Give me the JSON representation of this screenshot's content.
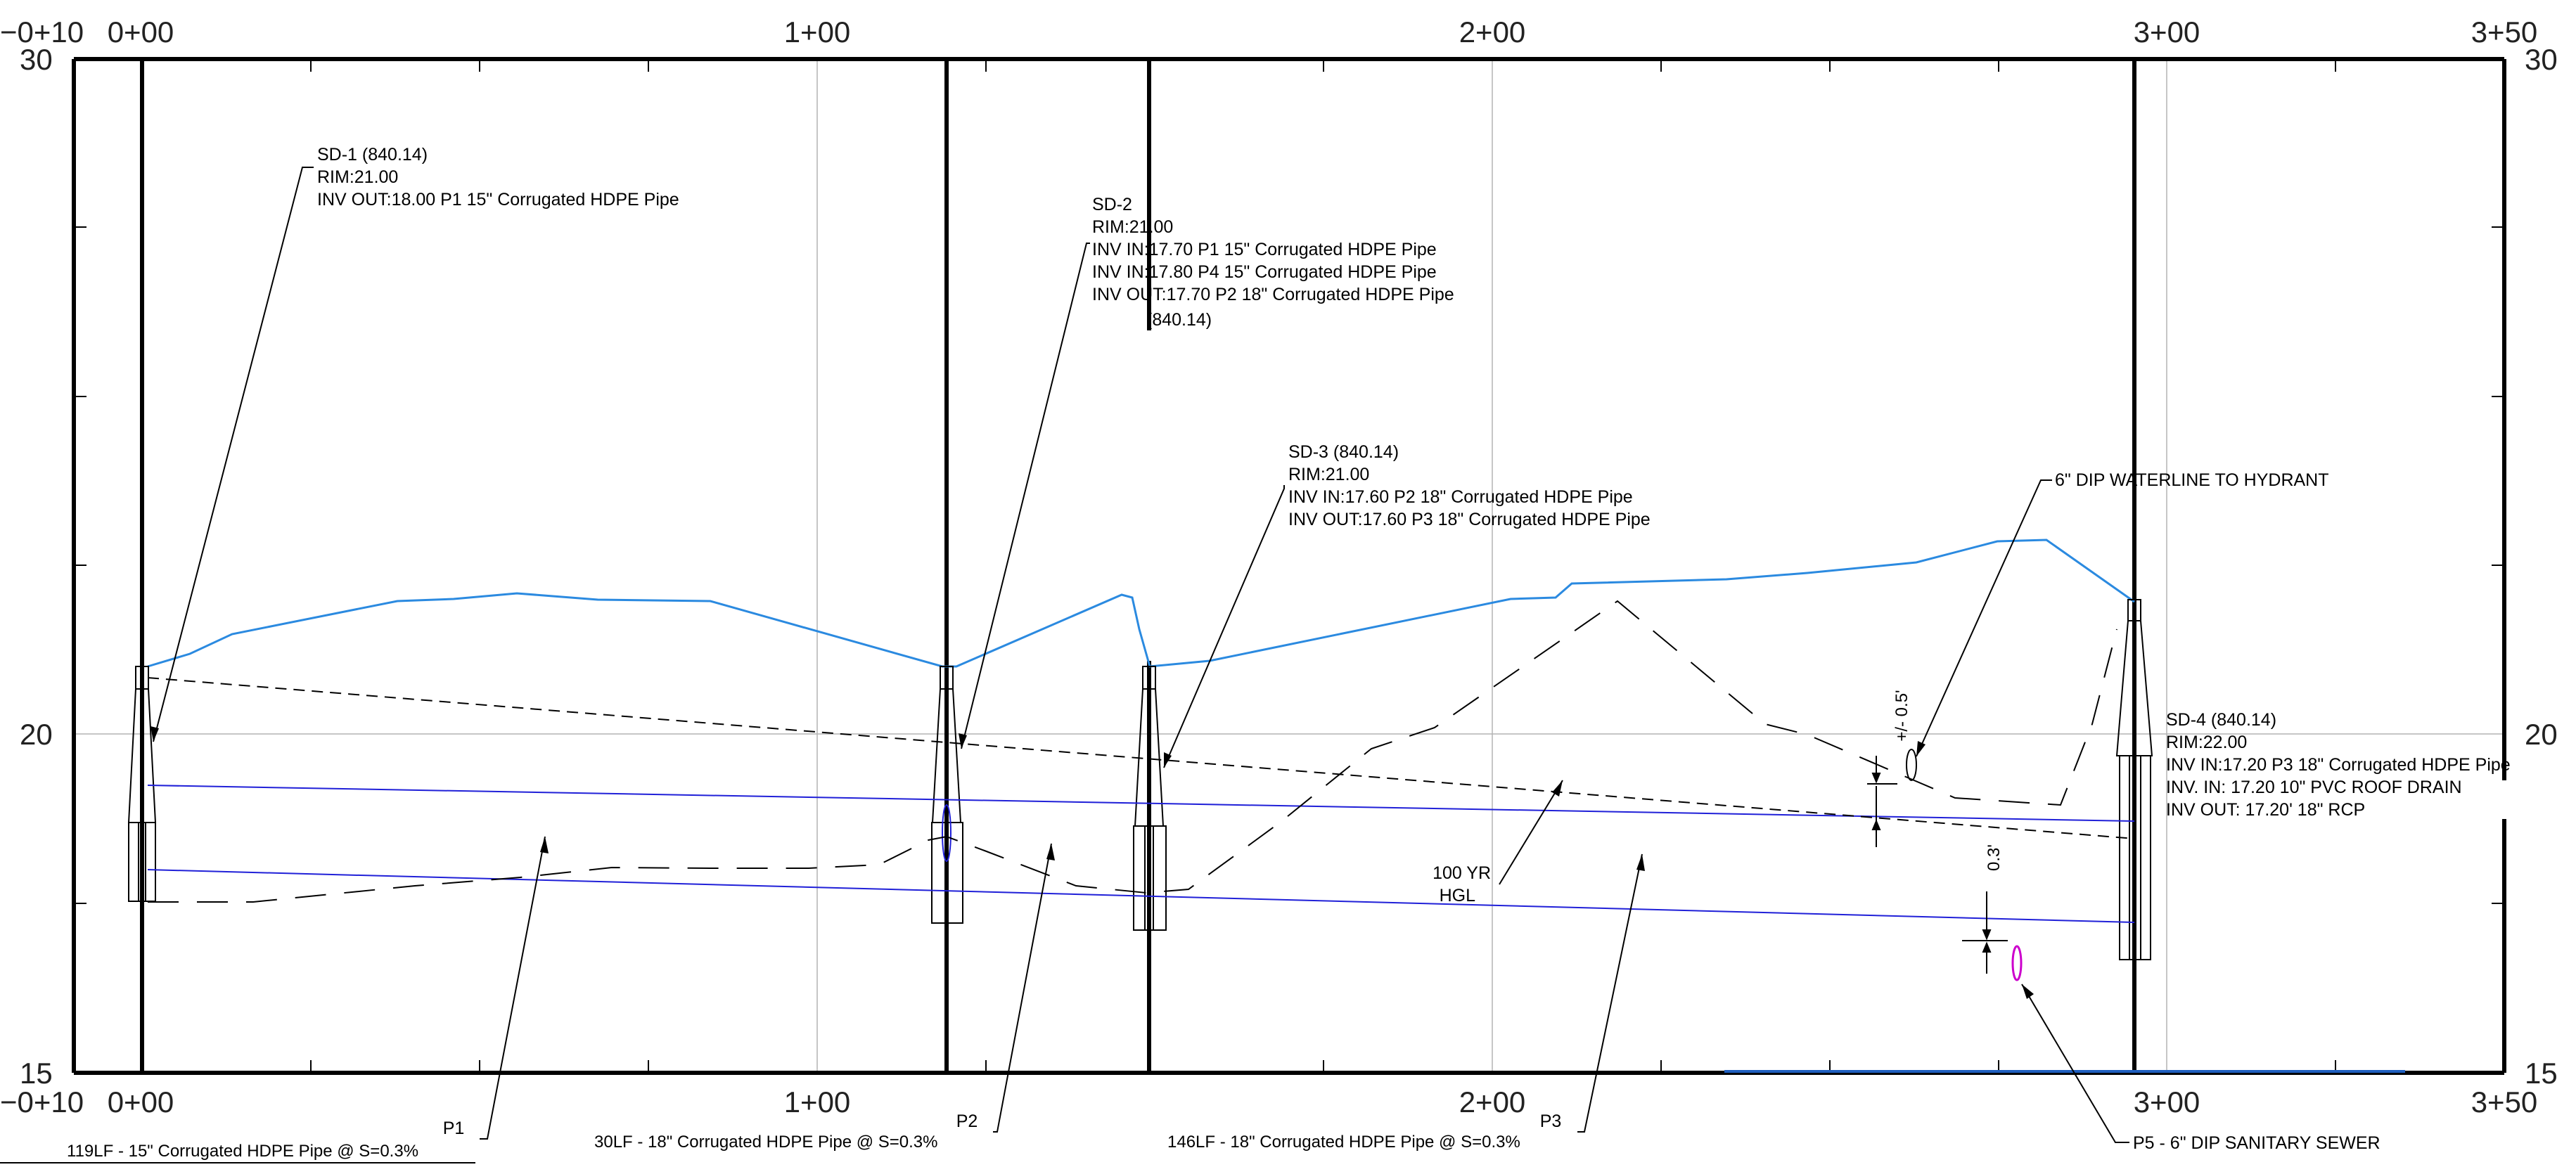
{
  "axes": {
    "x_stations": [
      "−0+10",
      "0+00",
      "1+00",
      "2+00",
      "3+00",
      "3+50"
    ],
    "y_elevations": [
      "30",
      "20",
      "15"
    ]
  },
  "structures": [
    {
      "id": "sd-1",
      "lines": [
        "SD-1 (840.14)",
        "RIM:21.00",
        "INV OUT:18.00 P1 15\" Corrugated HDPE Pipe"
      ]
    },
    {
      "id": "sd-2",
      "lines": [
        "SD-2",
        "RIM:21.00",
        "INV IN:17.70 P1 15\" Corrugated HDPE Pipe",
        "INV IN:17.80 P4 15\" Corrugated HDPE Pipe",
        "INV OUT:17.70 P2 18\" Corrugated HDPE Pipe",
        "(840.14)"
      ]
    },
    {
      "id": "sd-3",
      "lines": [
        "SD-3 (840.14)",
        "RIM:21.00",
        "INV IN:17.60 P2 18\" Corrugated HDPE Pipe",
        "INV OUT:17.60 P3 18\" Corrugated HDPE Pipe"
      ]
    },
    {
      "id": "sd-4",
      "lines": [
        "SD-4 (840.14)",
        "RIM:22.00",
        "INV IN:17.20 P3 18\" Corrugated HDPE Pipe",
        "INV. IN: 17.20 10\" PVC ROOF DRAIN",
        "INV OUT: 17.20' 18\" RCP"
      ]
    }
  ],
  "pipes": [
    {
      "name": "P1",
      "desc": "119LF - 15\" Corrugated HDPE Pipe @ S=0.3%"
    },
    {
      "name": "P2",
      "desc": "30LF - 18\" Corrugated HDPE Pipe @ S=0.3%"
    },
    {
      "name": "P3",
      "desc": "146LF - 18\" Corrugated HDPE Pipe @ S=0.3%"
    }
  ],
  "callouts": {
    "waterline": "6\" DIP WATERLINE TO HYDRANT",
    "hgl_line1": "100 YR",
    "hgl_line2": "HGL",
    "sewer": "P5 - 6\" DIP SANITARY SEWER",
    "clearance_water": "+/- 0.5'",
    "clearance_sewer": "0.3'"
  },
  "colors": {
    "ground": "#2b8ae0",
    "pipe": "#2020d8",
    "sewer": "#cc00cc",
    "grid": "#b4b4b4",
    "frame": "#000000"
  }
}
